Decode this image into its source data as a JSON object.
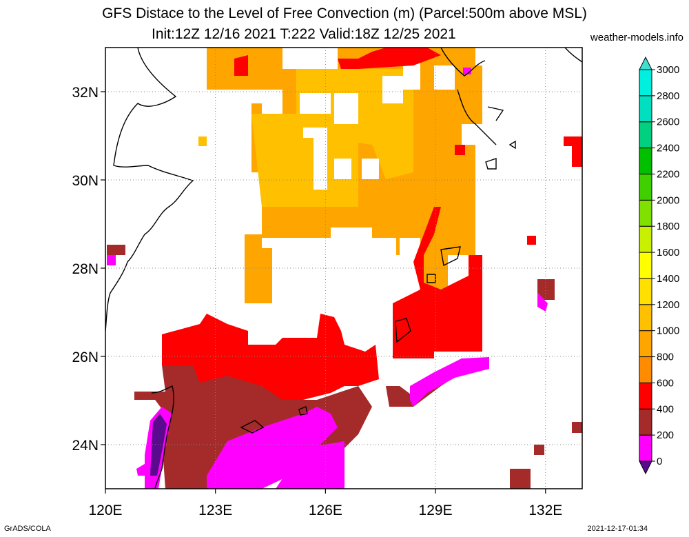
{
  "title": {
    "line1": "GFS Distace to the Level of Free Convection (m) (Parcel:500m above MSL)",
    "line2": "Init:12Z 12/16 2021 T:222 Valid:18Z 12/25 2021"
  },
  "brand": "weather-models.info",
  "footer": {
    "left": "GrADS/COLA",
    "right": "2021-12-17-01:34"
  },
  "map": {
    "lon_range": [
      120,
      133
    ],
    "lat_range": [
      23,
      33
    ],
    "lon_ticks": [
      {
        "value": 120,
        "label": "120E"
      },
      {
        "value": 123,
        "label": "123E"
      },
      {
        "value": 126,
        "label": "126E"
      },
      {
        "value": 129,
        "label": "129E"
      },
      {
        "value": 132,
        "label": "132E"
      }
    ],
    "lat_ticks": [
      {
        "value": 24,
        "label": "24N"
      },
      {
        "value": 26,
        "label": "26N"
      },
      {
        "value": 28,
        "label": "28N"
      },
      {
        "value": 30,
        "label": "30N"
      },
      {
        "value": 32,
        "label": "32N"
      }
    ],
    "gridlines": "dotted"
  },
  "colorbar": {
    "levels": [
      0,
      200,
      400,
      600,
      800,
      1000,
      1200,
      1400,
      1600,
      1800,
      2000,
      2200,
      2400,
      2600,
      2800,
      3000
    ],
    "labels": [
      "0",
      "200",
      "400",
      "600",
      "800",
      "1000",
      "1200",
      "1400",
      "1600",
      "1800",
      "2000",
      "2200",
      "2400",
      "2600",
      "2800",
      "3000"
    ],
    "colors": [
      "#5a0a8c",
      "#ff00ff",
      "#a52a2a",
      "#ff0000",
      "#ff8c00",
      "#ffa500",
      "#ffc000",
      "#ffe000",
      "#ffff00",
      "#c8f000",
      "#80e000",
      "#40d000",
      "#00c000",
      "#00d080",
      "#00e0c0",
      "#00f0e0",
      "#40e0d0"
    ],
    "arrows": "both"
  }
}
